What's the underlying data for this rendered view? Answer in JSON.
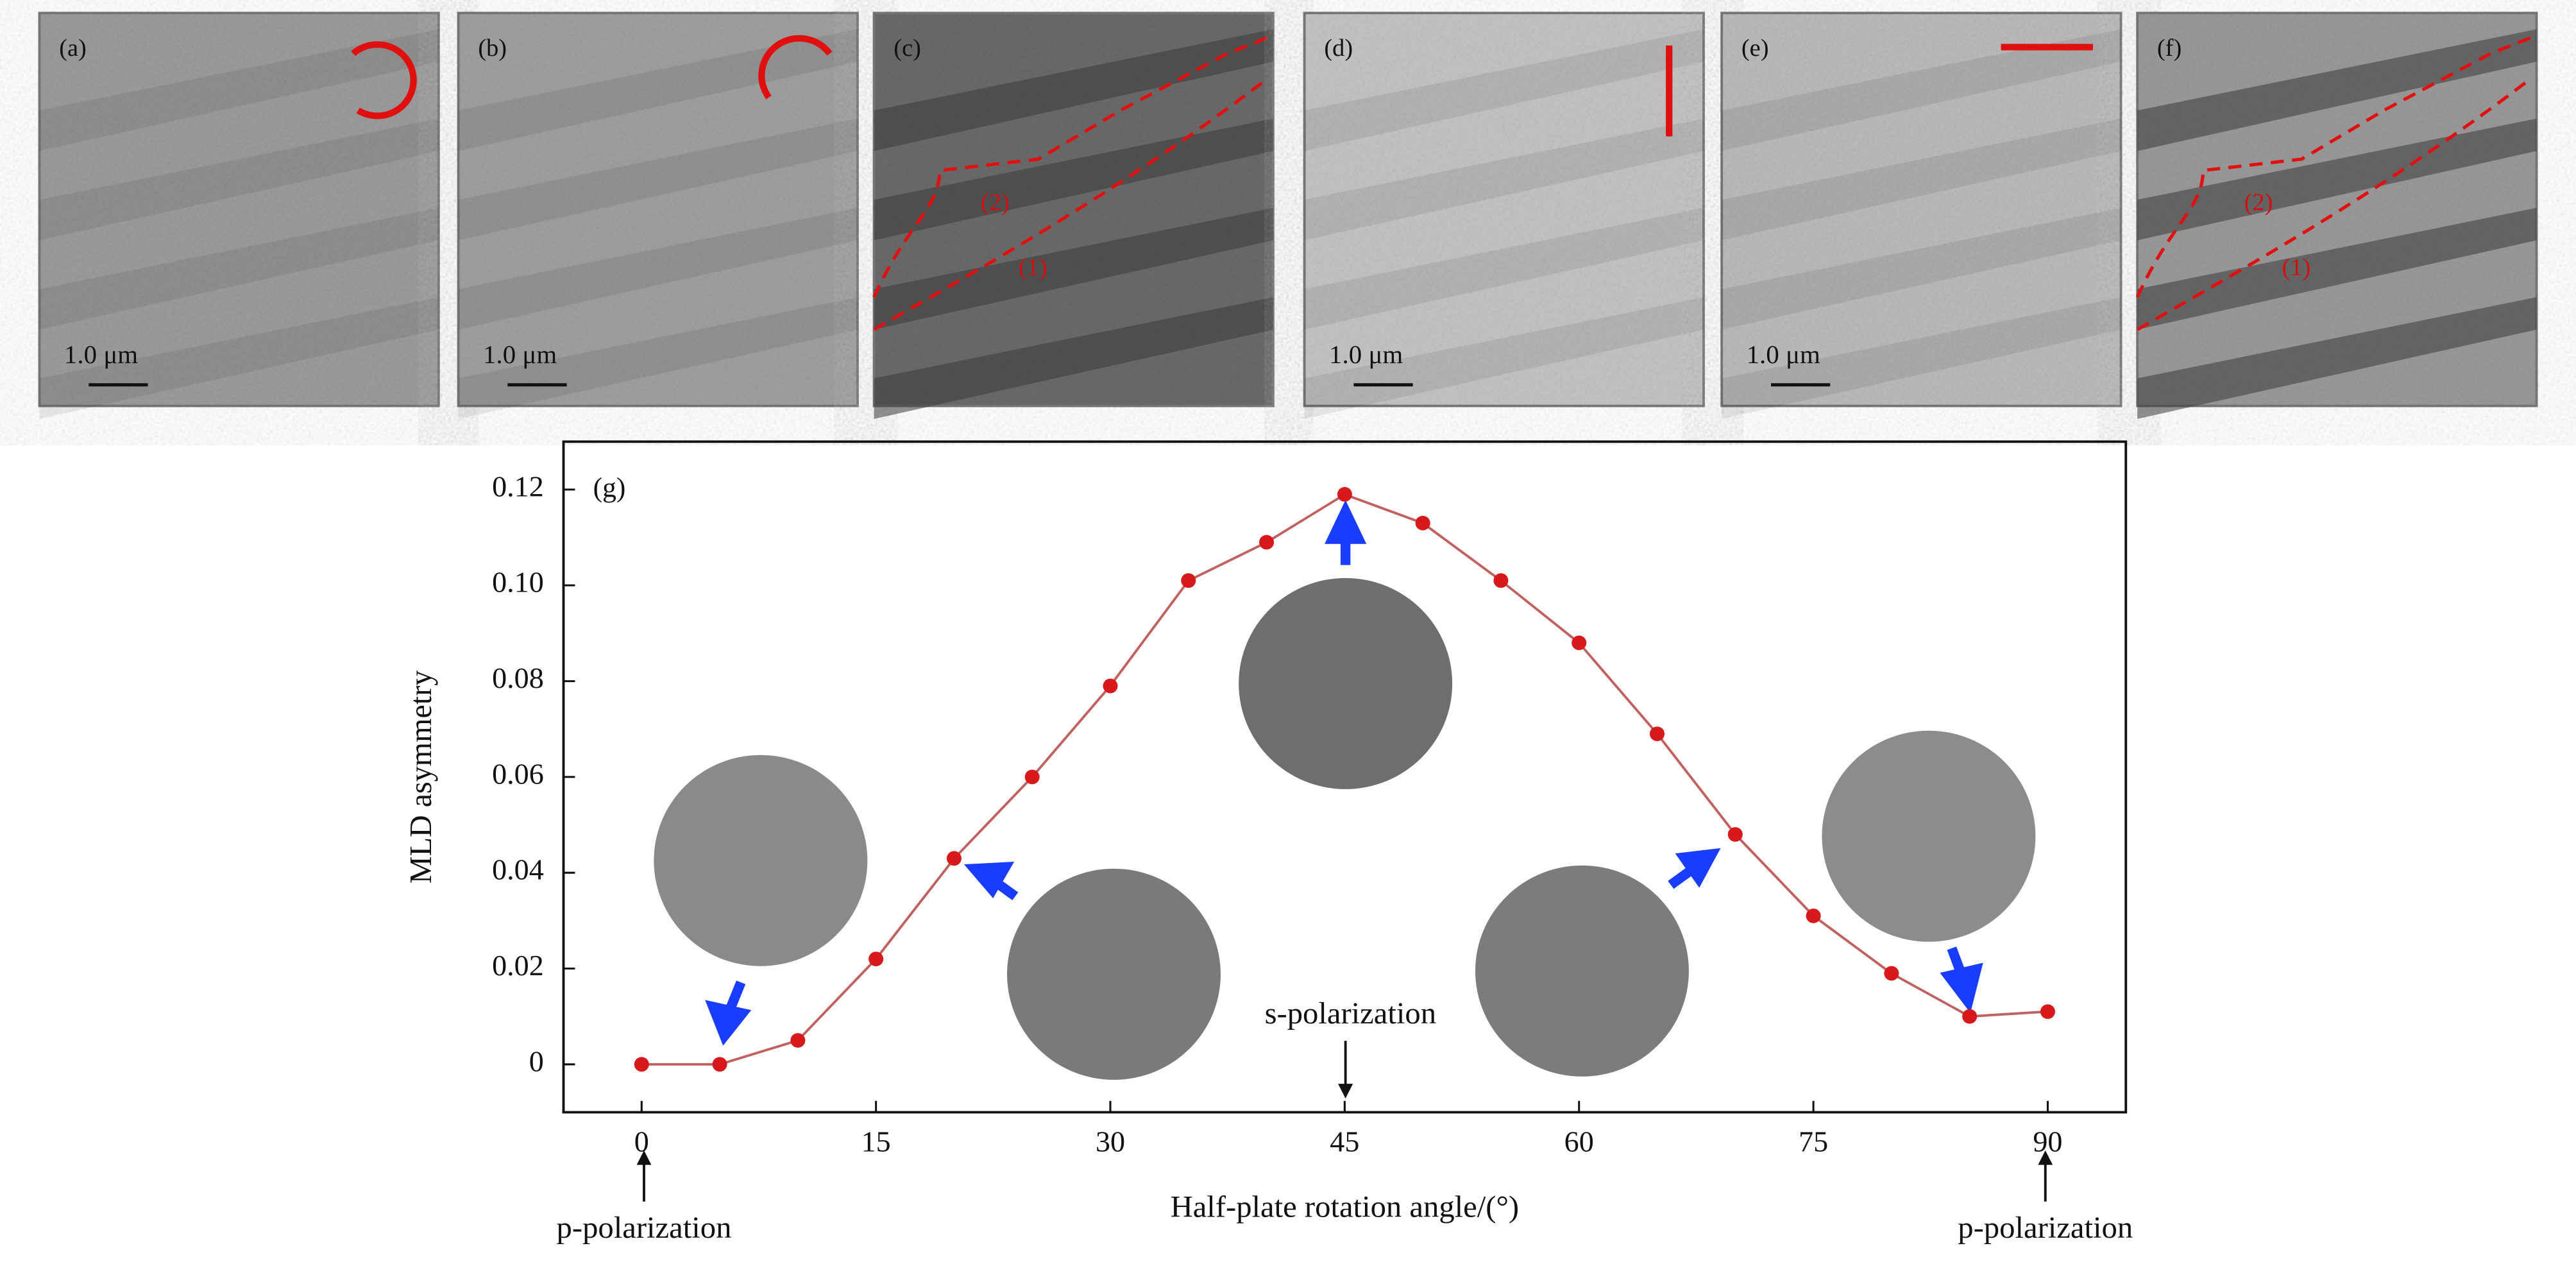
{
  "panels": [
    {
      "label": "(a)",
      "scale_bar": "1.0 μm"
    },
    {
      "label": "(b)",
      "scale_bar": "1.0 μm"
    },
    {
      "label": "(c)",
      "regions": [
        "(2)",
        "(1)"
      ]
    },
    {
      "label": "(d)",
      "scale_bar": "1.0 μm"
    },
    {
      "label": "(e)",
      "scale_bar": "1.0 μm"
    },
    {
      "label": "(f)",
      "regions": [
        "(2)",
        "(1)"
      ]
    }
  ],
  "chart_data": {
    "type": "line",
    "panel_label": "(g)",
    "x_label": "Half-plate rotation angle/(°)",
    "y_label": "MLD asymmetry",
    "x": [
      0,
      5,
      10,
      15,
      20,
      25,
      30,
      35,
      40,
      45,
      50,
      55,
      60,
      65,
      70,
      75,
      80,
      85,
      90
    ],
    "values": [
      0.0,
      0.0,
      0.005,
      0.022,
      0.043,
      0.06,
      0.079,
      0.101,
      0.109,
      0.119,
      0.113,
      0.101,
      0.088,
      0.069,
      0.048,
      0.031,
      0.019,
      0.01,
      0.011
    ],
    "color": "#d7191c",
    "line_color": "#c06060",
    "xlim": [
      -5,
      95
    ],
    "ylim": [
      -0.01,
      0.13
    ],
    "xticks": [
      0,
      15,
      30,
      45,
      60,
      75,
      90
    ],
    "yticks": [
      0,
      0.02,
      0.04,
      0.06,
      0.08,
      {
        "value": 0.1,
        "label": "0.10"
      },
      0.12
    ],
    "annotations": [
      "s-polarization",
      "p-polarization",
      "p-polarization"
    ]
  }
}
